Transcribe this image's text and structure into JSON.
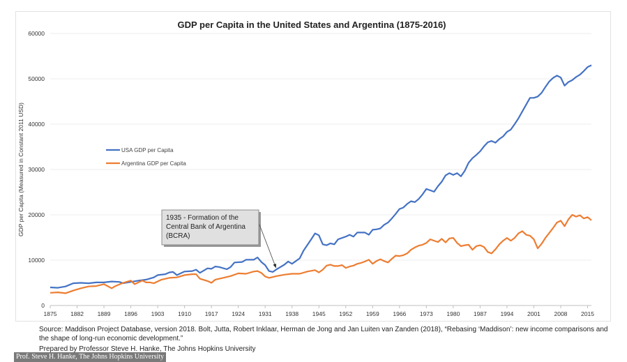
{
  "chart_data": {
    "type": "line",
    "title": "GDP per Capita in the United States and Argentina (1875-2016)",
    "ylabel": "GDP per Capita (Measured in Constant 2011 USD)",
    "xlabel": "",
    "xlim": [
      1875,
      2016
    ],
    "ylim": [
      0,
      60000
    ],
    "yticks": [
      0,
      10000,
      20000,
      30000,
      40000,
      50000,
      60000
    ],
    "xticks": [
      1875,
      1882,
      1889,
      1896,
      1903,
      1910,
      1917,
      1924,
      1931,
      1938,
      1945,
      1952,
      1959,
      1966,
      1973,
      1980,
      1987,
      1994,
      2001,
      2008,
      2015
    ],
    "grid": "horizontal",
    "legend_position": "left, middle",
    "series": [
      {
        "name": "USA GDP per Capita",
        "color": "#4472C4",
        "points": [
          [
            1875,
            4000
          ],
          [
            1877,
            3900
          ],
          [
            1879,
            4200
          ],
          [
            1881,
            4900
          ],
          [
            1883,
            5000
          ],
          [
            1885,
            4900
          ],
          [
            1887,
            5100
          ],
          [
            1889,
            5100
          ],
          [
            1891,
            5300
          ],
          [
            1893,
            5200
          ],
          [
            1894,
            4900
          ],
          [
            1896,
            5200
          ],
          [
            1898,
            5500
          ],
          [
            1900,
            5700
          ],
          [
            1902,
            6200
          ],
          [
            1903,
            6700
          ],
          [
            1905,
            6900
          ],
          [
            1906,
            7300
          ],
          [
            1907,
            7400
          ],
          [
            1908,
            6700
          ],
          [
            1910,
            7500
          ],
          [
            1912,
            7600
          ],
          [
            1913,
            7900
          ],
          [
            1914,
            7200
          ],
          [
            1916,
            8200
          ],
          [
            1917,
            8100
          ],
          [
            1918,
            8600
          ],
          [
            1919,
            8500
          ],
          [
            1921,
            8000
          ],
          [
            1922,
            8500
          ],
          [
            1923,
            9500
          ],
          [
            1925,
            9600
          ],
          [
            1926,
            10100
          ],
          [
            1928,
            10100
          ],
          [
            1929,
            10600
          ],
          [
            1930,
            9600
          ],
          [
            1931,
            8900
          ],
          [
            1932,
            7600
          ],
          [
            1933,
            7400
          ],
          [
            1934,
            8000
          ],
          [
            1936,
            9000
          ],
          [
            1937,
            9700
          ],
          [
            1938,
            9200
          ],
          [
            1940,
            10400
          ],
          [
            1941,
            12100
          ],
          [
            1943,
            14600
          ],
          [
            1944,
            15900
          ],
          [
            1945,
            15500
          ],
          [
            1946,
            13500
          ],
          [
            1947,
            13300
          ],
          [
            1948,
            13700
          ],
          [
            1949,
            13500
          ],
          [
            1950,
            14600
          ],
          [
            1952,
            15200
          ],
          [
            1953,
            15600
          ],
          [
            1954,
            15200
          ],
          [
            1955,
            16100
          ],
          [
            1956,
            16100
          ],
          [
            1957,
            16100
          ],
          [
            1958,
            15600
          ],
          [
            1959,
            16700
          ],
          [
            1960,
            16800
          ],
          [
            1961,
            17000
          ],
          [
            1962,
            17800
          ],
          [
            1963,
            18300
          ],
          [
            1964,
            19200
          ],
          [
            1965,
            20200
          ],
          [
            1966,
            21300
          ],
          [
            1967,
            21600
          ],
          [
            1968,
            22400
          ],
          [
            1969,
            23000
          ],
          [
            1970,
            22800
          ],
          [
            1971,
            23500
          ],
          [
            1972,
            24500
          ],
          [
            1973,
            25700
          ],
          [
            1974,
            25400
          ],
          [
            1975,
            25100
          ],
          [
            1976,
            26300
          ],
          [
            1977,
            27300
          ],
          [
            1978,
            28700
          ],
          [
            1979,
            29200
          ],
          [
            1980,
            28800
          ],
          [
            1981,
            29200
          ],
          [
            1982,
            28500
          ],
          [
            1983,
            29700
          ],
          [
            1984,
            31500
          ],
          [
            1985,
            32500
          ],
          [
            1986,
            33200
          ],
          [
            1987,
            34000
          ],
          [
            1988,
            35100
          ],
          [
            1989,
            36000
          ],
          [
            1990,
            36300
          ],
          [
            1991,
            35900
          ],
          [
            1992,
            36700
          ],
          [
            1993,
            37300
          ],
          [
            1994,
            38300
          ],
          [
            1995,
            38800
          ],
          [
            1996,
            40000
          ],
          [
            1997,
            41300
          ],
          [
            1998,
            42800
          ],
          [
            1999,
            44300
          ],
          [
            2000,
            45800
          ],
          [
            2001,
            45800
          ],
          [
            2002,
            46100
          ],
          [
            2003,
            46900
          ],
          [
            2004,
            48200
          ],
          [
            2005,
            49400
          ],
          [
            2006,
            50200
          ],
          [
            2007,
            50700
          ],
          [
            2008,
            50300
          ],
          [
            2009,
            48500
          ],
          [
            2010,
            49300
          ],
          [
            2011,
            49700
          ],
          [
            2012,
            50400
          ],
          [
            2013,
            50900
          ],
          [
            2014,
            51700
          ],
          [
            2015,
            52600
          ],
          [
            2016,
            53000
          ]
        ]
      },
      {
        "name": "Argentina GDP per Capita",
        "color": "#ED7D31",
        "points": [
          [
            1875,
            2800
          ],
          [
            1877,
            2900
          ],
          [
            1879,
            2700
          ],
          [
            1881,
            3300
          ],
          [
            1883,
            3800
          ],
          [
            1885,
            4200
          ],
          [
            1887,
            4300
          ],
          [
            1889,
            4700
          ],
          [
            1891,
            3800
          ],
          [
            1892,
            4300
          ],
          [
            1894,
            5000
          ],
          [
            1896,
            5500
          ],
          [
            1897,
            4700
          ],
          [
            1899,
            5500
          ],
          [
            1900,
            5100
          ],
          [
            1901,
            5100
          ],
          [
            1902,
            4900
          ],
          [
            1904,
            5700
          ],
          [
            1906,
            6100
          ],
          [
            1908,
            6200
          ],
          [
            1910,
            6700
          ],
          [
            1912,
            6900
          ],
          [
            1913,
            6900
          ],
          [
            1914,
            5900
          ],
          [
            1916,
            5400
          ],
          [
            1917,
            5000
          ],
          [
            1918,
            5700
          ],
          [
            1920,
            6100
          ],
          [
            1922,
            6500
          ],
          [
            1924,
            7100
          ],
          [
            1926,
            7000
          ],
          [
            1928,
            7500
          ],
          [
            1929,
            7600
          ],
          [
            1930,
            7200
          ],
          [
            1931,
            6400
          ],
          [
            1932,
            6100
          ],
          [
            1934,
            6500
          ],
          [
            1936,
            6800
          ],
          [
            1938,
            7000
          ],
          [
            1940,
            7000
          ],
          [
            1942,
            7500
          ],
          [
            1944,
            7800
          ],
          [
            1945,
            7300
          ],
          [
            1946,
            7900
          ],
          [
            1947,
            8800
          ],
          [
            1948,
            9000
          ],
          [
            1949,
            8700
          ],
          [
            1950,
            8700
          ],
          [
            1951,
            8900
          ],
          [
            1952,
            8300
          ],
          [
            1953,
            8600
          ],
          [
            1954,
            8800
          ],
          [
            1955,
            9200
          ],
          [
            1956,
            9400
          ],
          [
            1957,
            9700
          ],
          [
            1958,
            10100
          ],
          [
            1959,
            9200
          ],
          [
            1960,
            9800
          ],
          [
            1961,
            10200
          ],
          [
            1962,
            9800
          ],
          [
            1963,
            9500
          ],
          [
            1964,
            10300
          ],
          [
            1965,
            11000
          ],
          [
            1966,
            10900
          ],
          [
            1967,
            11100
          ],
          [
            1968,
            11500
          ],
          [
            1969,
            12300
          ],
          [
            1970,
            12800
          ],
          [
            1971,
            13200
          ],
          [
            1972,
            13400
          ],
          [
            1973,
            13800
          ],
          [
            1974,
            14600
          ],
          [
            1975,
            14300
          ],
          [
            1976,
            14000
          ],
          [
            1977,
            14700
          ],
          [
            1978,
            13900
          ],
          [
            1979,
            14800
          ],
          [
            1980,
            14900
          ],
          [
            1981,
            13800
          ],
          [
            1982,
            13100
          ],
          [
            1983,
            13300
          ],
          [
            1984,
            13400
          ],
          [
            1985,
            12300
          ],
          [
            1986,
            13100
          ],
          [
            1987,
            13300
          ],
          [
            1988,
            12900
          ],
          [
            1989,
            11800
          ],
          [
            1990,
            11500
          ],
          [
            1991,
            12400
          ],
          [
            1992,
            13500
          ],
          [
            1993,
            14300
          ],
          [
            1994,
            14900
          ],
          [
            1995,
            14300
          ],
          [
            1996,
            14900
          ],
          [
            1997,
            15900
          ],
          [
            1998,
            16400
          ],
          [
            1999,
            15600
          ],
          [
            2000,
            15400
          ],
          [
            2001,
            14600
          ],
          [
            2002,
            12600
          ],
          [
            2003,
            13600
          ],
          [
            2004,
            14900
          ],
          [
            2005,
            16000
          ],
          [
            2006,
            17100
          ],
          [
            2007,
            18300
          ],
          [
            2008,
            18700
          ],
          [
            2009,
            17500
          ],
          [
            2010,
            19000
          ],
          [
            2011,
            20000
          ],
          [
            2012,
            19600
          ],
          [
            2013,
            19900
          ],
          [
            2014,
            19200
          ],
          [
            2015,
            19500
          ],
          [
            2016,
            18800
          ]
        ]
      }
    ],
    "annotation": {
      "lines": [
        "1935 - Formation of the",
        "Central Bank of Argentina",
        "(BCRA)"
      ],
      "year": 1935
    }
  },
  "source_lines": [
    "Source: Maddison Project Database, version 2018. Bolt, Jutta, Robert Inklaar, Herman de Jong and Jan Luiten van Zanden (2018), “Rebasing ‘Maddison’: new income comparisons and the shape of long-run economic development.”",
    "Prepared by Professor Steve H. Hanke, The Johns Hopkins University"
  ],
  "credit": "Prof. Steve H. Hanke, The Johns Hopkins University"
}
